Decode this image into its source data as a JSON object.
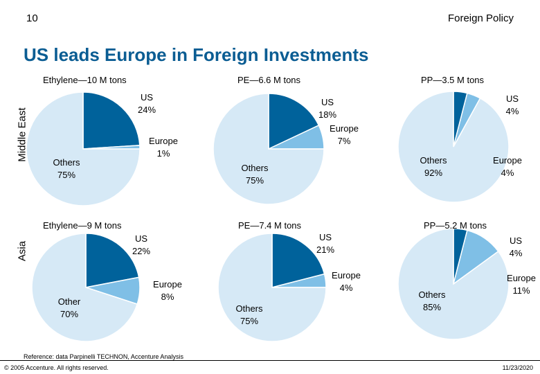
{
  "header": {
    "page_number": "10",
    "section": "Foreign Policy",
    "title": "US leads Europe in Foreign Investments"
  },
  "row_labels": [
    "Middle East",
    "Asia"
  ],
  "footer": {
    "reference": "Reference: data Parpinelli TECHNON, Accenture Analysis",
    "copyright": "© 2005 Accenture. All rights reserved.",
    "date": "11/23/2020"
  },
  "colors": {
    "us": "#00629b",
    "europe": "#7fbfe6",
    "others": "#d6e9f6"
  },
  "chart_data": [
    {
      "type": "pie",
      "title": "Ethylene—10 M tons",
      "region": "Middle East",
      "slices": [
        {
          "name": "US",
          "pct": "24%",
          "value": 24
        },
        {
          "name": "Europe",
          "pct": "1%",
          "value": 1
        },
        {
          "name": "Others",
          "pct": "75%",
          "value": 75
        }
      ]
    },
    {
      "type": "pie",
      "title": "PE—6.6 M tons",
      "region": "Middle East",
      "slices": [
        {
          "name": "US",
          "pct": "18%",
          "value": 18
        },
        {
          "name": "Europe",
          "pct": "7%",
          "value": 7
        },
        {
          "name": "Others",
          "pct": "75%",
          "value": 75
        }
      ]
    },
    {
      "type": "pie",
      "title": "PP—3.5 M tons",
      "region": "Middle East",
      "slices": [
        {
          "name": "US",
          "pct": "4%",
          "value": 4
        },
        {
          "name": "Europe",
          "pct": "4%",
          "value": 4
        },
        {
          "name": "Others",
          "pct": "92%",
          "value": 92
        }
      ]
    },
    {
      "type": "pie",
      "title": "Ethylene—9 M tons",
      "region": "Asia",
      "slices": [
        {
          "name": "US",
          "pct": "22%",
          "value": 22
        },
        {
          "name": "Europe",
          "pct": "8%",
          "value": 8
        },
        {
          "name": "Other",
          "pct": "70%",
          "value": 70
        }
      ]
    },
    {
      "type": "pie",
      "title": "PE—7.4 M tons",
      "region": "Asia",
      "slices": [
        {
          "name": "US",
          "pct": "21%",
          "value": 21
        },
        {
          "name": "Europe",
          "pct": "4%",
          "value": 4
        },
        {
          "name": "Others",
          "pct": "75%",
          "value": 75
        }
      ]
    },
    {
      "type": "pie",
      "title": "PP—5.2 M tons",
      "region": "Asia",
      "slices": [
        {
          "name": "US",
          "pct": "4%",
          "value": 4
        },
        {
          "name": "Europe",
          "pct": "11%",
          "value": 11
        },
        {
          "name": "Others",
          "pct": "85%",
          "value": 85
        }
      ]
    }
  ]
}
